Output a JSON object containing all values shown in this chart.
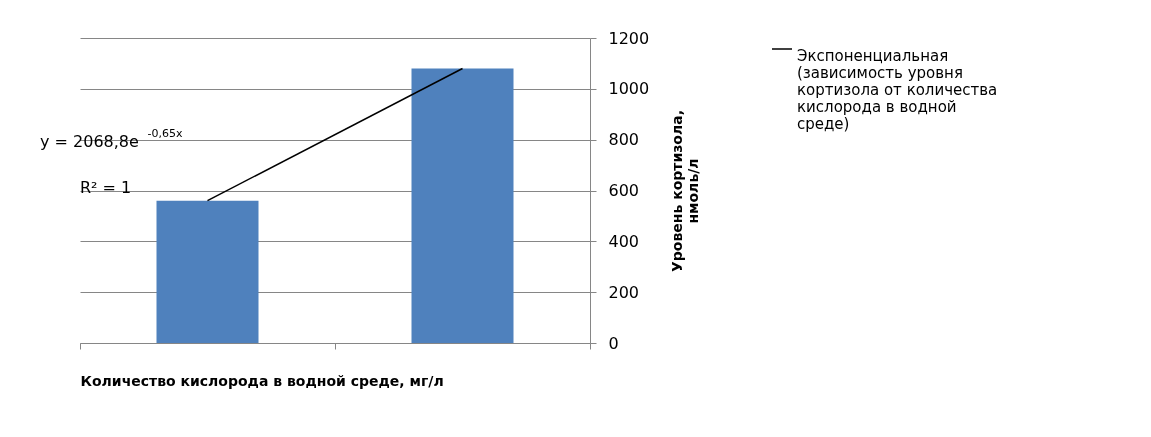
{
  "chart_data": {
    "type": "bar",
    "categories": [
      null,
      null
    ],
    "xlabel": "Количество  кислорода в водной среде, мг/л",
    "ylabel": "Уровень кортизола, нмоль/л",
    "series": [
      {
        "color": "#4f81bd",
        "values": [
          560,
          1080
        ]
      },
      {
        "type": "line",
        "name": "Экспоненциальная (зависимость уровня кортизола от количества кислорода в водной среде)",
        "color": "#000000",
        "values": [
          560,
          1080
        ]
      }
    ],
    "ylim": [
      0,
      1200
    ],
    "yticks": [
      0,
      200,
      400,
      600,
      800,
      1000,
      1200
    ],
    "grid": "y",
    "legend": "right",
    "annotations": [
      "y = 2068,8e$^{-0,65x}$",
      "R² = 1"
    ]
  }
}
